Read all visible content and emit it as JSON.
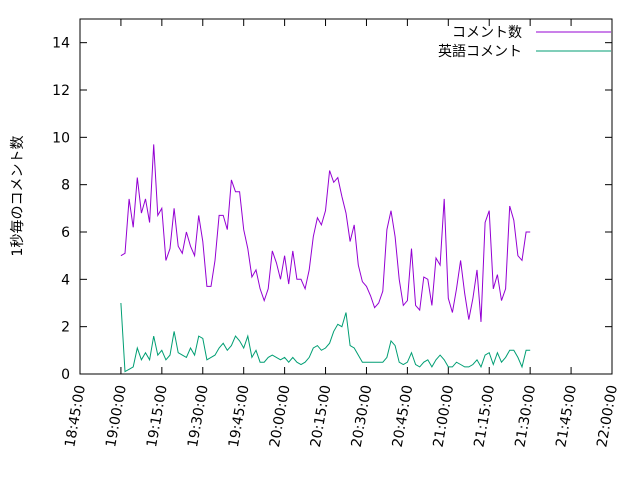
{
  "chart_data": {
    "type": "line",
    "title": "",
    "xlabel": "",
    "ylabel": "1秒毎のコメント数",
    "xlim": [
      "18:45:00",
      "22:00:00"
    ],
    "ylim": [
      0,
      15
    ],
    "grid": false,
    "legend_position": "top-right",
    "x_ticks": [
      "18:45:00",
      "19:00:00",
      "19:15:00",
      "19:30:00",
      "19:45:00",
      "20:00:00",
      "20:15:00",
      "20:30:00",
      "20:45:00",
      "21:00:00",
      "21:15:00",
      "21:30:00",
      "21:45:00",
      "22:00:00"
    ],
    "y_ticks": [
      0,
      2,
      4,
      6,
      8,
      10,
      12,
      14
    ],
    "series": [
      {
        "name": "コメント数",
        "color": "#9400d3",
        "points": [
          [
            "19:00:00",
            5.0
          ],
          [
            "19:01:30",
            5.1
          ],
          [
            "19:03:00",
            7.4
          ],
          [
            "19:04:30",
            6.2
          ],
          [
            "19:06:00",
            8.3
          ],
          [
            "19:07:30",
            6.8
          ],
          [
            "19:09:00",
            7.4
          ],
          [
            "19:10:30",
            6.4
          ],
          [
            "19:12:00",
            9.7
          ],
          [
            "19:13:30",
            6.7
          ],
          [
            "19:15:00",
            7.0
          ],
          [
            "19:16:30",
            4.8
          ],
          [
            "19:18:00",
            5.3
          ],
          [
            "19:19:30",
            7.0
          ],
          [
            "19:21:00",
            5.4
          ],
          [
            "19:22:30",
            5.1
          ],
          [
            "19:24:00",
            6.0
          ],
          [
            "19:25:30",
            5.4
          ],
          [
            "19:27:00",
            5.0
          ],
          [
            "19:28:30",
            6.7
          ],
          [
            "19:30:00",
            5.6
          ],
          [
            "19:31:30",
            3.7
          ],
          [
            "19:33:00",
            3.7
          ],
          [
            "19:34:30",
            4.8
          ],
          [
            "19:36:00",
            6.7
          ],
          [
            "19:37:30",
            6.7
          ],
          [
            "19:39:00",
            6.1
          ],
          [
            "19:40:30",
            8.2
          ],
          [
            "19:42:00",
            7.7
          ],
          [
            "19:43:30",
            7.7
          ],
          [
            "19:45:00",
            6.1
          ],
          [
            "19:46:30",
            5.3
          ],
          [
            "19:48:00",
            4.1
          ],
          [
            "19:49:30",
            4.4
          ],
          [
            "19:51:00",
            3.6
          ],
          [
            "19:52:30",
            3.1
          ],
          [
            "19:54:00",
            3.6
          ],
          [
            "19:55:30",
            5.2
          ],
          [
            "19:57:00",
            4.7
          ],
          [
            "19:58:30",
            4.0
          ],
          [
            "20:00:00",
            5.0
          ],
          [
            "20:01:30",
            3.8
          ],
          [
            "20:03:00",
            5.2
          ],
          [
            "20:04:30",
            4.0
          ],
          [
            "20:06:00",
            4.0
          ],
          [
            "20:07:30",
            3.6
          ],
          [
            "20:09:00",
            4.4
          ],
          [
            "20:10:30",
            5.8
          ],
          [
            "20:12:00",
            6.6
          ],
          [
            "20:13:30",
            6.3
          ],
          [
            "20:15:00",
            6.9
          ],
          [
            "20:16:30",
            8.6
          ],
          [
            "20:18:00",
            8.1
          ],
          [
            "20:19:30",
            8.3
          ],
          [
            "20:21:00",
            7.5
          ],
          [
            "20:22:30",
            6.8
          ],
          [
            "20:24:00",
            5.6
          ],
          [
            "20:25:30",
            6.3
          ],
          [
            "20:27:00",
            4.6
          ],
          [
            "20:28:30",
            3.9
          ],
          [
            "20:30:00",
            3.7
          ],
          [
            "20:31:30",
            3.3
          ],
          [
            "20:33:00",
            2.8
          ],
          [
            "20:34:30",
            3.0
          ],
          [
            "20:36:00",
            3.5
          ],
          [
            "20:37:30",
            6.1
          ],
          [
            "20:39:00",
            6.9
          ],
          [
            "20:40:30",
            5.8
          ],
          [
            "20:42:00",
            4.0
          ],
          [
            "20:43:30",
            2.9
          ],
          [
            "20:45:00",
            3.1
          ],
          [
            "20:46:30",
            5.3
          ],
          [
            "20:48:00",
            2.9
          ],
          [
            "20:49:30",
            2.7
          ],
          [
            "20:51:00",
            4.1
          ],
          [
            "20:52:30",
            4.0
          ],
          [
            "20:54:00",
            2.9
          ],
          [
            "20:55:30",
            4.9
          ],
          [
            "20:57:00",
            4.6
          ],
          [
            "20:58:30",
            7.4
          ],
          [
            "21:00:00",
            3.2
          ],
          [
            "21:01:30",
            2.6
          ],
          [
            "21:03:00",
            3.6
          ],
          [
            "21:04:30",
            4.8
          ],
          [
            "21:06:00",
            3.4
          ],
          [
            "21:07:30",
            2.3
          ],
          [
            "21:09:00",
            3.2
          ],
          [
            "21:10:30",
            4.4
          ],
          [
            "21:12:00",
            2.2
          ],
          [
            "21:13:30",
            6.4
          ],
          [
            "21:15:00",
            6.9
          ],
          [
            "21:16:30",
            3.6
          ],
          [
            "21:18:00",
            4.2
          ],
          [
            "21:19:30",
            3.1
          ],
          [
            "21:21:00",
            3.6
          ],
          [
            "21:22:30",
            7.1
          ],
          [
            "21:24:00",
            6.5
          ],
          [
            "21:25:30",
            5.0
          ],
          [
            "21:27:00",
            4.8
          ],
          [
            "21:28:30",
            6.0
          ],
          [
            "21:30:00",
            6.0
          ]
        ]
      },
      {
        "name": "英語コメント",
        "color": "#009e73",
        "points": [
          [
            "19:00:00",
            3.0
          ],
          [
            "19:01:30",
            0.1
          ],
          [
            "19:03:00",
            0.2
          ],
          [
            "19:04:30",
            0.3
          ],
          [
            "19:06:00",
            1.1
          ],
          [
            "19:07:30",
            0.6
          ],
          [
            "19:09:00",
            0.9
          ],
          [
            "19:10:30",
            0.6
          ],
          [
            "19:12:00",
            1.6
          ],
          [
            "19:13:30",
            0.8
          ],
          [
            "19:15:00",
            1.0
          ],
          [
            "19:16:30",
            0.6
          ],
          [
            "19:18:00",
            0.8
          ],
          [
            "19:19:30",
            1.8
          ],
          [
            "19:21:00",
            0.9
          ],
          [
            "19:22:30",
            0.8
          ],
          [
            "19:24:00",
            0.7
          ],
          [
            "19:25:30",
            1.1
          ],
          [
            "19:27:00",
            0.8
          ],
          [
            "19:28:30",
            1.6
          ],
          [
            "19:30:00",
            1.5
          ],
          [
            "19:31:30",
            0.6
          ],
          [
            "19:33:00",
            0.7
          ],
          [
            "19:34:30",
            0.8
          ],
          [
            "19:36:00",
            1.1
          ],
          [
            "19:37:30",
            1.3
          ],
          [
            "19:39:00",
            1.0
          ],
          [
            "19:40:30",
            1.2
          ],
          [
            "19:42:00",
            1.6
          ],
          [
            "19:43:30",
            1.4
          ],
          [
            "19:45:00",
            1.1
          ],
          [
            "19:46:30",
            1.6
          ],
          [
            "19:48:00",
            0.7
          ],
          [
            "19:49:30",
            1.0
          ],
          [
            "19:51:00",
            0.5
          ],
          [
            "19:52:30",
            0.5
          ],
          [
            "19:54:00",
            0.7
          ],
          [
            "19:55:30",
            0.8
          ],
          [
            "19:57:00",
            0.7
          ],
          [
            "19:58:30",
            0.6
          ],
          [
            "20:00:00",
            0.7
          ],
          [
            "20:01:30",
            0.5
          ],
          [
            "20:03:00",
            0.7
          ],
          [
            "20:04:30",
            0.5
          ],
          [
            "20:06:00",
            0.4
          ],
          [
            "20:07:30",
            0.5
          ],
          [
            "20:09:00",
            0.7
          ],
          [
            "20:10:30",
            1.1
          ],
          [
            "20:12:00",
            1.2
          ],
          [
            "20:13:30",
            1.0
          ],
          [
            "20:15:00",
            1.1
          ],
          [
            "20:16:30",
            1.3
          ],
          [
            "20:18:00",
            1.8
          ],
          [
            "20:19:30",
            2.1
          ],
          [
            "20:21:00",
            2.0
          ],
          [
            "20:22:30",
            2.6
          ],
          [
            "20:24:00",
            1.2
          ],
          [
            "20:25:30",
            1.1
          ],
          [
            "20:27:00",
            0.8
          ],
          [
            "20:28:30",
            0.5
          ],
          [
            "20:30:00",
            0.5
          ],
          [
            "20:31:30",
            0.5
          ],
          [
            "20:33:00",
            0.5
          ],
          [
            "20:34:30",
            0.5
          ],
          [
            "20:36:00",
            0.5
          ],
          [
            "20:37:30",
            0.7
          ],
          [
            "20:39:00",
            1.4
          ],
          [
            "20:40:30",
            1.2
          ],
          [
            "20:42:00",
            0.5
          ],
          [
            "20:43:30",
            0.4
          ],
          [
            "20:45:00",
            0.5
          ],
          [
            "20:46:30",
            0.9
          ],
          [
            "20:48:00",
            0.4
          ],
          [
            "20:49:30",
            0.3
          ],
          [
            "20:51:00",
            0.5
          ],
          [
            "20:52:30",
            0.6
          ],
          [
            "20:54:00",
            0.3
          ],
          [
            "20:55:30",
            0.6
          ],
          [
            "20:57:00",
            0.8
          ],
          [
            "20:58:30",
            0.6
          ],
          [
            "21:00:00",
            0.3
          ],
          [
            "21:01:30",
            0.3
          ],
          [
            "21:03:00",
            0.5
          ],
          [
            "21:04:30",
            0.4
          ],
          [
            "21:06:00",
            0.3
          ],
          [
            "21:07:30",
            0.3
          ],
          [
            "21:09:00",
            0.4
          ],
          [
            "21:10:30",
            0.6
          ],
          [
            "21:12:00",
            0.3
          ],
          [
            "21:13:30",
            0.8
          ],
          [
            "21:15:00",
            0.9
          ],
          [
            "21:16:30",
            0.4
          ],
          [
            "21:18:00",
            0.9
          ],
          [
            "21:19:30",
            0.5
          ],
          [
            "21:21:00",
            0.7
          ],
          [
            "21:22:30",
            1.0
          ],
          [
            "21:24:00",
            1.0
          ],
          [
            "21:25:30",
            0.7
          ],
          [
            "21:27:00",
            0.3
          ],
          [
            "21:28:30",
            1.0
          ],
          [
            "21:30:00",
            1.0
          ]
        ]
      }
    ]
  }
}
